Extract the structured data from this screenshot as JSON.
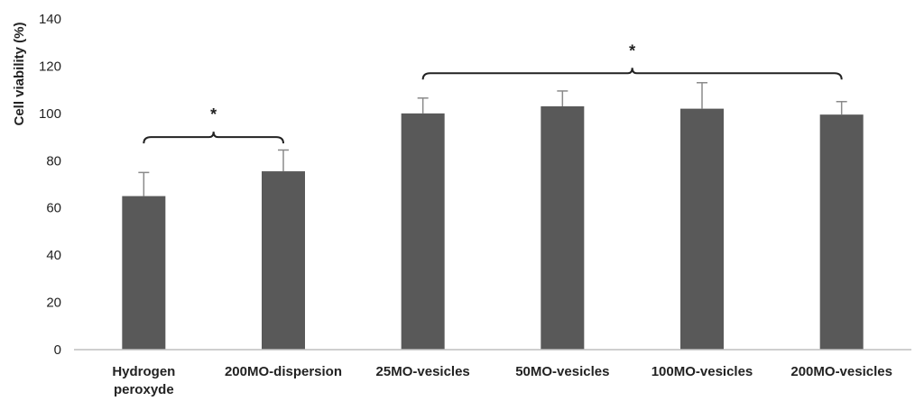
{
  "chart_data": {
    "type": "bar",
    "title": "",
    "xlabel": "",
    "ylabel": "Cell viability (%)",
    "ylim": [
      0,
      140
    ],
    "yticks": [
      0,
      20,
      40,
      60,
      80,
      100,
      120,
      140
    ],
    "grid": false,
    "categories": [
      "Hydrogen peroxyde",
      "200MO-dispersion",
      "25MO-vesicles",
      "50MO-vesicles",
      "100MO-vesicles",
      "200MO-vesicles"
    ],
    "values": [
      65,
      75.5,
      100,
      103,
      102,
      99.5
    ],
    "error_bars": [
      10,
      9,
      6.5,
      6.5,
      11,
      5.5
    ],
    "bar_color": "#595959",
    "significance": [
      {
        "from": 0,
        "to": 1,
        "label": "*",
        "level": 90
      },
      {
        "from": 2,
        "to": 5,
        "label": "*",
        "level": 117
      }
    ]
  }
}
